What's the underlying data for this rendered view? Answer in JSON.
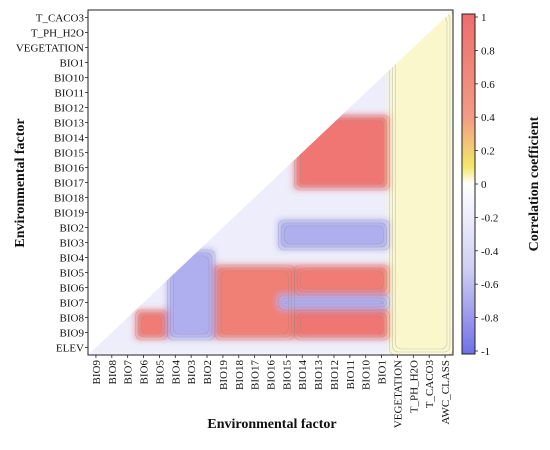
{
  "chart_data": {
    "type": "heatmap",
    "title": "",
    "xlabel": "Environmental factor",
    "ylabel": "Environmental factor",
    "colorbar_label": "Correlation coefficient",
    "colorbar_range": [
      -1,
      1
    ],
    "colorbar_ticks": [
      "1",
      "0.8",
      "0.6",
      "0.4",
      "0.2",
      "0",
      "-0.2",
      "-0.4",
      "-0.6",
      "-0.8",
      "-1"
    ],
    "colormap": {
      "low": "#6f6fe8",
      "mid": "#ffffff",
      "high_mid": "#f3e86a",
      "high": "#ee6d6d"
    },
    "y_categories_top_to_bottom": [
      "T_CACO3",
      "T_PH_H2O",
      "VEGETATION",
      "BIO1",
      "BIO10",
      "BIO11",
      "BIO12",
      "BIO13",
      "BIO14",
      "BIO15",
      "BIO16",
      "BIO17",
      "BIO18",
      "BIO19",
      "BIO2",
      "BIO3",
      "BIO4",
      "BIO5",
      "BIO6",
      "BIO7",
      "BIO8",
      "BIO9",
      "ELEV"
    ],
    "x_categories_left_to_right": [
      "BIO9",
      "BIO8",
      "BIO7",
      "BIO6",
      "BIO5",
      "BIO4",
      "BIO3",
      "BIO2",
      "BIO19",
      "BIO18",
      "BIO17",
      "BIO16",
      "BIO15",
      "BIO14",
      "BIO13",
      "BIO12",
      "BIO11",
      "BIO10",
      "BIO1",
      "VEGETATION",
      "T_PH_H2O",
      "T_CACO3",
      "AWC_CLASS"
    ],
    "regions": [
      {
        "name": "bio-temp-block",
        "x_range": [
          "BIO14",
          "BIO1"
        ],
        "y_range": [
          "BIO13",
          "BIO17"
        ],
        "value": 0.9
      },
      {
        "name": "bio-temp-block-2",
        "x_range": [
          "BIO14",
          "BIO1"
        ],
        "y_range": [
          "BIO5",
          "BIO6"
        ],
        "value": 0.85
      },
      {
        "name": "bio-temp-block-3",
        "x_range": [
          "BIO14",
          "BIO1"
        ],
        "y_range": [
          "BIO8",
          "BIO9"
        ],
        "value": 0.9
      },
      {
        "name": "precip-band",
        "x_range": [
          "BIO19",
          "BIO15"
        ],
        "y_range": [
          "BIO5",
          "BIO9"
        ],
        "value": 0.8
      },
      {
        "name": "bio6-cell",
        "x_range": [
          "BIO6",
          "BIO5"
        ],
        "y_range": [
          "BIO8",
          "BIO9"
        ],
        "value": 0.85
      },
      {
        "name": "bio2-row",
        "x_range": [
          "BIO15",
          "BIO1"
        ],
        "y_range": [
          "BIO2",
          "BIO3"
        ],
        "value": -0.6
      },
      {
        "name": "bio4-row",
        "x_range": [
          "BIO15",
          "BIO1"
        ],
        "y_range": [
          "BIO7",
          "BIO7"
        ],
        "value": -0.6
      },
      {
        "name": "bio3-col",
        "x_range": [
          "BIO4",
          "BIO2"
        ],
        "y_range": [
          "BIO4",
          "BIO9"
        ],
        "value": -0.6
      },
      {
        "name": "soil-cols",
        "x_range": [
          "VEGETATION",
          "AWC_CLASS"
        ],
        "y_range": [
          "T_CACO3",
          "ELEV"
        ],
        "value": 0.05
      }
    ]
  }
}
